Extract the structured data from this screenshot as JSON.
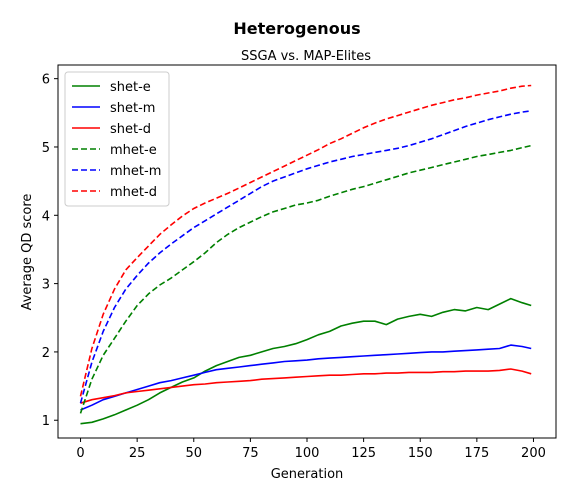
{
  "chart_data": {
    "type": "line",
    "title": "Heterogenous",
    "subtitle": "SSGA vs. MAP-Elites",
    "xlabel": "Generation",
    "ylabel": "Average QD score",
    "xlim": [
      -9.95,
      209.95
    ],
    "ylim": [
      0.74,
      6.2
    ],
    "xticks": [
      0,
      25,
      50,
      75,
      100,
      125,
      150,
      175,
      200
    ],
    "yticks": [
      1,
      2,
      3,
      4,
      5,
      6
    ],
    "grid": false,
    "legend_position": "top-left",
    "series": [
      {
        "name": "shet-e",
        "color": "#008000",
        "dash": "solid",
        "x": [
          0,
          5,
          10,
          15,
          20,
          25,
          30,
          35,
          40,
          45,
          50,
          55,
          60,
          65,
          70,
          75,
          80,
          85,
          90,
          95,
          100,
          105,
          110,
          115,
          120,
          125,
          130,
          135,
          140,
          145,
          150,
          155,
          160,
          165,
          170,
          175,
          180,
          185,
          190,
          195,
          199
        ],
        "y": [
          0.95,
          0.97,
          1.02,
          1.08,
          1.15,
          1.22,
          1.3,
          1.4,
          1.48,
          1.56,
          1.62,
          1.72,
          1.8,
          1.86,
          1.92,
          1.95,
          2.0,
          2.05,
          2.08,
          2.12,
          2.18,
          2.25,
          2.3,
          2.38,
          2.42,
          2.45,
          2.45,
          2.4,
          2.48,
          2.52,
          2.55,
          2.52,
          2.58,
          2.62,
          2.6,
          2.65,
          2.62,
          2.7,
          2.78,
          2.72,
          2.68
        ]
      },
      {
        "name": "shet-m",
        "color": "#0000ff",
        "dash": "solid",
        "x": [
          0,
          5,
          10,
          15,
          20,
          25,
          30,
          35,
          40,
          45,
          50,
          55,
          60,
          65,
          70,
          75,
          80,
          85,
          90,
          95,
          100,
          105,
          110,
          115,
          120,
          125,
          130,
          135,
          140,
          145,
          150,
          155,
          160,
          165,
          170,
          175,
          180,
          185,
          190,
          195,
          199
        ],
        "y": [
          1.15,
          1.22,
          1.3,
          1.35,
          1.4,
          1.45,
          1.5,
          1.55,
          1.58,
          1.62,
          1.66,
          1.7,
          1.74,
          1.76,
          1.78,
          1.8,
          1.82,
          1.84,
          1.86,
          1.87,
          1.88,
          1.9,
          1.91,
          1.92,
          1.93,
          1.94,
          1.95,
          1.96,
          1.97,
          1.98,
          1.99,
          2.0,
          2.0,
          2.01,
          2.02,
          2.03,
          2.04,
          2.05,
          2.1,
          2.08,
          2.05
        ]
      },
      {
        "name": "shet-d",
        "color": "#ff0000",
        "dash": "solid",
        "x": [
          0,
          5,
          10,
          15,
          20,
          25,
          30,
          35,
          40,
          45,
          50,
          55,
          60,
          65,
          70,
          75,
          80,
          85,
          90,
          95,
          100,
          105,
          110,
          115,
          120,
          125,
          130,
          135,
          140,
          145,
          150,
          155,
          160,
          165,
          170,
          175,
          180,
          185,
          190,
          195,
          199
        ],
        "y": [
          1.25,
          1.3,
          1.33,
          1.36,
          1.4,
          1.42,
          1.44,
          1.46,
          1.48,
          1.5,
          1.52,
          1.53,
          1.55,
          1.56,
          1.57,
          1.58,
          1.6,
          1.61,
          1.62,
          1.63,
          1.64,
          1.65,
          1.66,
          1.66,
          1.67,
          1.68,
          1.68,
          1.69,
          1.69,
          1.7,
          1.7,
          1.7,
          1.71,
          1.71,
          1.72,
          1.72,
          1.72,
          1.73,
          1.75,
          1.72,
          1.68
        ]
      },
      {
        "name": "mhet-e",
        "color": "#008000",
        "dash": "dashed",
        "x": [
          0,
          5,
          10,
          15,
          20,
          25,
          30,
          35,
          40,
          45,
          50,
          55,
          60,
          65,
          70,
          75,
          80,
          85,
          90,
          95,
          100,
          105,
          110,
          115,
          120,
          125,
          130,
          135,
          140,
          145,
          150,
          155,
          160,
          165,
          170,
          175,
          180,
          185,
          190,
          195,
          199
        ],
        "y": [
          1.1,
          1.6,
          1.95,
          2.2,
          2.45,
          2.68,
          2.85,
          2.98,
          3.08,
          3.2,
          3.32,
          3.45,
          3.6,
          3.72,
          3.82,
          3.9,
          3.98,
          4.05,
          4.1,
          4.15,
          4.18,
          4.22,
          4.28,
          4.33,
          4.38,
          4.42,
          4.47,
          4.52,
          4.57,
          4.62,
          4.66,
          4.7,
          4.74,
          4.78,
          4.82,
          4.86,
          4.89,
          4.92,
          4.95,
          4.99,
          5.02
        ]
      },
      {
        "name": "mhet-m",
        "color": "#0000ff",
        "dash": "dashed",
        "x": [
          0,
          5,
          10,
          15,
          20,
          25,
          30,
          35,
          40,
          45,
          50,
          55,
          60,
          65,
          70,
          75,
          80,
          85,
          90,
          95,
          100,
          105,
          110,
          115,
          120,
          125,
          130,
          135,
          140,
          145,
          150,
          155,
          160,
          165,
          170,
          175,
          180,
          185,
          190,
          195,
          199
        ],
        "y": [
          1.25,
          1.85,
          2.3,
          2.65,
          2.92,
          3.12,
          3.3,
          3.45,
          3.58,
          3.7,
          3.82,
          3.92,
          4.02,
          4.12,
          4.22,
          4.32,
          4.42,
          4.5,
          4.56,
          4.62,
          4.68,
          4.73,
          4.78,
          4.82,
          4.86,
          4.89,
          4.92,
          4.95,
          4.98,
          5.02,
          5.07,
          5.12,
          5.18,
          5.24,
          5.3,
          5.35,
          5.4,
          5.44,
          5.48,
          5.51,
          5.53
        ]
      },
      {
        "name": "mhet-d",
        "color": "#ff0000",
        "dash": "dashed",
        "x": [
          0,
          5,
          10,
          15,
          20,
          25,
          30,
          35,
          40,
          45,
          50,
          55,
          60,
          65,
          70,
          75,
          80,
          85,
          90,
          95,
          100,
          105,
          110,
          115,
          120,
          125,
          130,
          135,
          140,
          145,
          150,
          155,
          160,
          165,
          170,
          175,
          180,
          185,
          190,
          195,
          199
        ],
        "y": [
          1.35,
          2.05,
          2.55,
          2.92,
          3.2,
          3.38,
          3.55,
          3.72,
          3.86,
          3.99,
          4.1,
          4.18,
          4.25,
          4.32,
          4.4,
          4.48,
          4.56,
          4.64,
          4.72,
          4.8,
          4.88,
          4.96,
          5.05,
          5.12,
          5.2,
          5.28,
          5.35,
          5.41,
          5.46,
          5.51,
          5.56,
          5.61,
          5.65,
          5.69,
          5.72,
          5.76,
          5.79,
          5.82,
          5.86,
          5.89,
          5.9
        ]
      }
    ]
  }
}
